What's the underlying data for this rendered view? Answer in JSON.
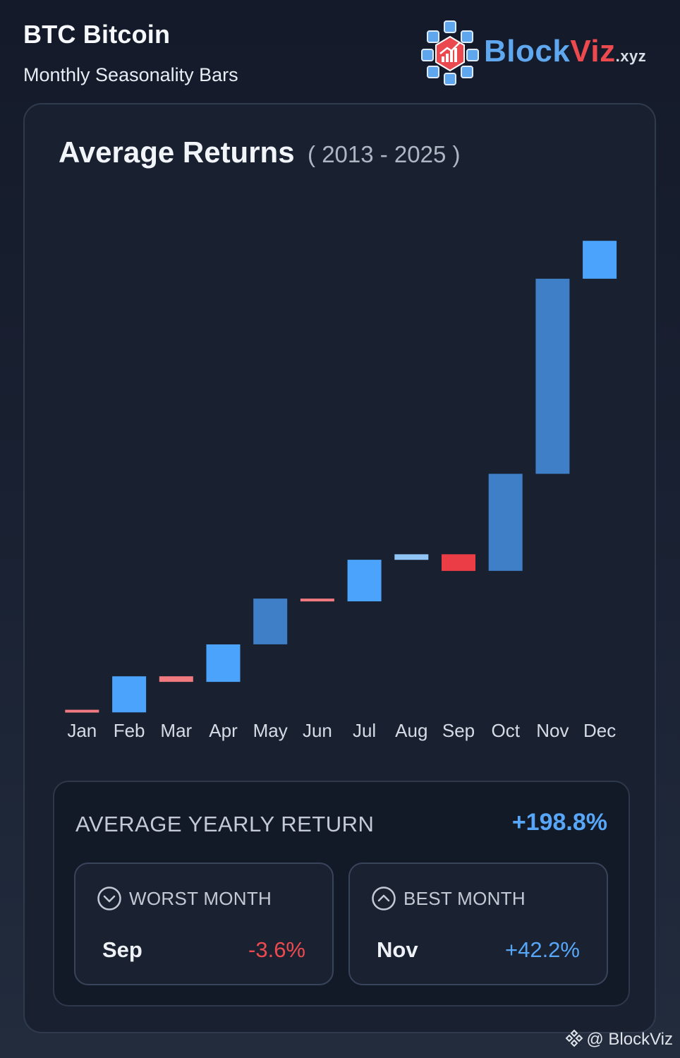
{
  "header": {
    "title": "BTC Bitcoin",
    "subtitle": "Monthly Seasonality Bars"
  },
  "logo": {
    "name_part1": "Block",
    "name_part2": "Viz",
    "suffix": ".xyz"
  },
  "chart_data": {
    "type": "bar",
    "title": "Average Returns",
    "subtitle": "( 2013 - 2025 )",
    "style": "waterfall",
    "categories": [
      "Jan",
      "Feb",
      "Mar",
      "Apr",
      "May",
      "Jun",
      "Jul",
      "Aug",
      "Sep",
      "Oct",
      "Nov",
      "Dec"
    ],
    "values": [
      -0.5,
      7.8,
      -1.2,
      8.1,
      9.9,
      -0.6,
      9.0,
      1.2,
      -3.6,
      21.0,
      42.2,
      8.2
    ],
    "colors": {
      "positive": "#4ba3fb",
      "positive_alt": "#3e7fc8",
      "negative": "#ea3d45",
      "negative_light": "#f07a7f",
      "positive_light": "#8fc4f5"
    },
    "ylim": [
      -2,
      122
    ],
    "grid": false,
    "legend": "none"
  },
  "summary": {
    "label": "AVERAGE YEARLY RETURN",
    "value": "+198.8%",
    "worst": {
      "label": "WORST MONTH",
      "month": "Sep",
      "value": "-3.6%",
      "icon": "chevron-down-circle-icon"
    },
    "best": {
      "label": "BEST MONTH",
      "month": "Nov",
      "value": "+42.2%",
      "icon": "chevron-up-circle-icon"
    }
  },
  "watermark": {
    "text": "@ BlockViz",
    "icon": "binance-diamond-icon"
  }
}
